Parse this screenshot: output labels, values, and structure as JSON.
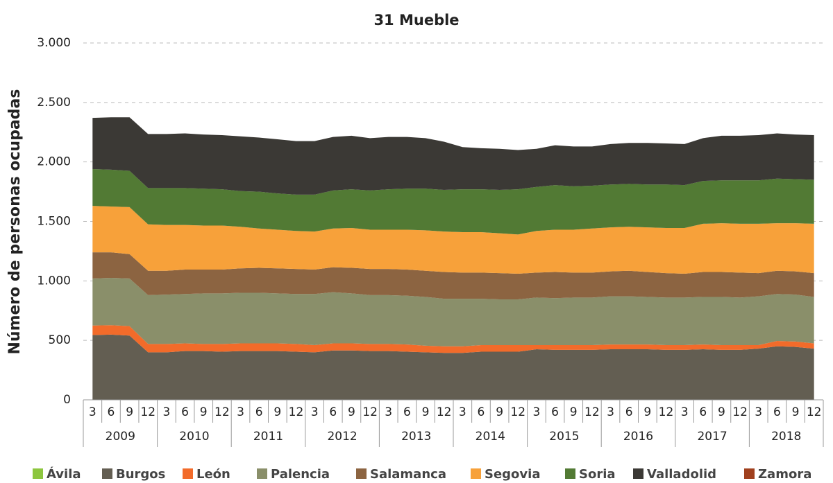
{
  "chart_data": {
    "type": "stacked_area",
    "title": "31 Mueble",
    "y_label": "Número de personas ocupadas",
    "categories": [
      "3",
      "6",
      "9",
      "12",
      "3",
      "6",
      "9",
      "12",
      "3",
      "6",
      "9",
      "12",
      "3",
      "6",
      "9",
      "12",
      "3",
      "6",
      "9",
      "12",
      "3",
      "6",
      "9",
      "12",
      "3",
      "6",
      "9",
      "12",
      "3",
      "6",
      "9",
      "12",
      "3",
      "6",
      "9",
      "12",
      "3",
      "6",
      "9",
      "12"
    ],
    "groups": [
      "2009",
      "2010",
      "2011",
      "2012",
      "2013",
      "2014",
      "2015",
      "2016",
      "2017",
      "2018"
    ],
    "ylim": [
      0,
      3000
    ],
    "yticks": [
      0,
      500,
      {
        "value": 1000,
        "label": "1.000"
      },
      {
        "value": 1500,
        "label": "1.500"
      },
      {
        "value": 2000,
        "label": "2.000"
      },
      {
        "value": 2500,
        "label": "2.500"
      },
      {
        "value": 3000,
        "label": "3.000"
      }
    ],
    "grid": true,
    "series": [
      {
        "name": "Ávila",
        "color": "#8dc63f",
        "values": [
          0,
          0,
          0,
          0,
          0,
          0,
          0,
          0,
          0,
          0,
          0,
          0,
          0,
          0,
          0,
          0,
          0,
          0,
          0,
          0,
          0,
          0,
          0,
          0,
          0,
          0,
          0,
          0,
          0,
          0,
          0,
          0,
          0,
          0,
          0,
          0,
          0,
          0,
          0,
          0
        ]
      },
      {
        "name": "Burgos",
        "color": "#635e52",
        "values": [
          545,
          548,
          540,
          400,
          400,
          410,
          410,
          405,
          410,
          410,
          410,
          405,
          400,
          415,
          415,
          410,
          410,
          405,
          400,
          395,
          395,
          405,
          405,
          405,
          425,
          420,
          420,
          420,
          425,
          425,
          425,
          420,
          420,
          425,
          420,
          420,
          430,
          450,
          445,
          430
        ]
      },
      {
        "name": "León",
        "color": "#f26b2a",
        "values": [
          80,
          80,
          80,
          70,
          70,
          65,
          60,
          65,
          65,
          65,
          65,
          65,
          60,
          60,
          60,
          60,
          60,
          60,
          55,
          55,
          55,
          55,
          55,
          55,
          35,
          40,
          40,
          40,
          40,
          40,
          40,
          40,
          40,
          40,
          40,
          40,
          30,
          45,
          45,
          45
        ]
      },
      {
        "name": "Palencia",
        "color": "#8a8f6a",
        "values": [
          395,
          397,
          400,
          410,
          415,
          415,
          425,
          425,
          425,
          425,
          420,
          420,
          430,
          430,
          420,
          410,
          410,
          410,
          410,
          400,
          400,
          390,
          385,
          385,
          400,
          395,
          400,
          400,
          405,
          405,
          400,
          400,
          400,
          400,
          405,
          400,
          410,
          395,
          395,
          390
        ]
      },
      {
        "name": "Salamanca",
        "color": "#8c6441",
        "values": [
          220,
          215,
          205,
          205,
          200,
          205,
          200,
          200,
          205,
          210,
          210,
          210,
          205,
          210,
          215,
          220,
          220,
          220,
          220,
          225,
          220,
          220,
          220,
          215,
          210,
          220,
          210,
          210,
          210,
          215,
          210,
          205,
          200,
          210,
          210,
          210,
          195,
          195,
          195,
          200
        ]
      },
      {
        "name": "Segovia",
        "color": "#f7a13a",
        "values": [
          390,
          385,
          395,
          390,
          385,
          375,
          370,
          370,
          350,
          330,
          325,
          320,
          320,
          325,
          335,
          330,
          330,
          335,
          340,
          340,
          340,
          340,
          335,
          330,
          350,
          355,
          360,
          370,
          370,
          370,
          375,
          380,
          385,
          405,
          410,
          410,
          415,
          400,
          405,
          415
        ]
      },
      {
        "name": "Soria",
        "color": "#527a34",
        "values": [
          310,
          310,
          305,
          305,
          310,
          310,
          310,
          305,
          300,
          310,
          305,
          305,
          310,
          320,
          325,
          330,
          340,
          345,
          350,
          350,
          360,
          360,
          365,
          380,
          370,
          375,
          365,
          360,
          360,
          360,
          360,
          365,
          360,
          360,
          360,
          365,
          365,
          375,
          370,
          370
        ]
      },
      {
        "name": "Valladolid",
        "color": "#3b3935",
        "values": [
          430,
          440,
          450,
          455,
          455,
          460,
          455,
          455,
          460,
          455,
          455,
          450,
          450,
          450,
          450,
          440,
          440,
          435,
          425,
          405,
          355,
          345,
          345,
          330,
          320,
          335,
          335,
          330,
          340,
          345,
          350,
          345,
          345,
          360,
          375,
          375,
          380,
          380,
          375,
          375
        ]
      },
      {
        "name": "Zamora",
        "color": "#a0401e",
        "values": [
          0,
          0,
          0,
          0,
          0,
          0,
          0,
          0,
          0,
          0,
          0,
          0,
          0,
          0,
          0,
          0,
          0,
          0,
          0,
          0,
          0,
          0,
          0,
          0,
          0,
          0,
          0,
          0,
          0,
          0,
          0,
          0,
          0,
          0,
          0,
          0,
          0,
          0,
          0,
          0
        ]
      }
    ]
  }
}
